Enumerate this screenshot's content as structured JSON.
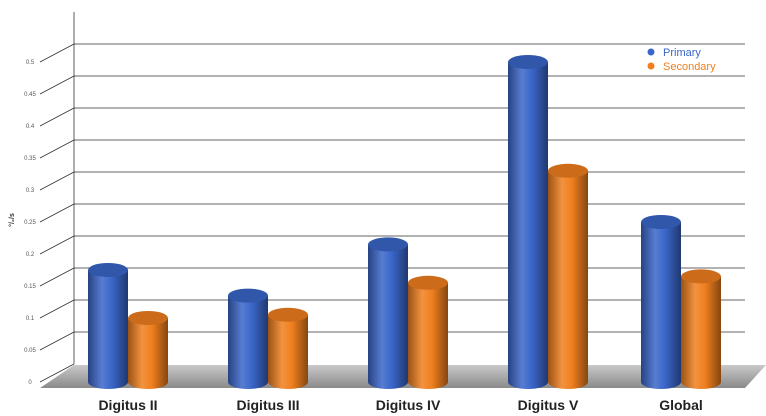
{
  "chart_data": {
    "type": "bar",
    "title": "",
    "xlabel": "",
    "ylabel": "°/₂/s",
    "ylim": [
      0,
      0.55
    ],
    "yticks": [
      "0",
      "0.05",
      "0.1",
      "0.15",
      "0.2",
      "0.25",
      "0.3",
      "0.35",
      "0.4",
      "0.45",
      "0.5"
    ],
    "categories": [
      "Digitus II",
      "Digitus III",
      "Digitus IV",
      "Digitus V",
      "Global"
    ],
    "series": [
      {
        "name": "Primary",
        "color": "#3a66c9",
        "values": [
          0.175,
          0.135,
          0.215,
          0.5,
          0.25
        ]
      },
      {
        "name": "Secondary",
        "color": "#f07f1e",
        "values": [
          0.1,
          0.105,
          0.155,
          0.33,
          0.165
        ]
      }
    ],
    "grid": true,
    "legend": "top-right",
    "style": "3d-cylinder"
  }
}
